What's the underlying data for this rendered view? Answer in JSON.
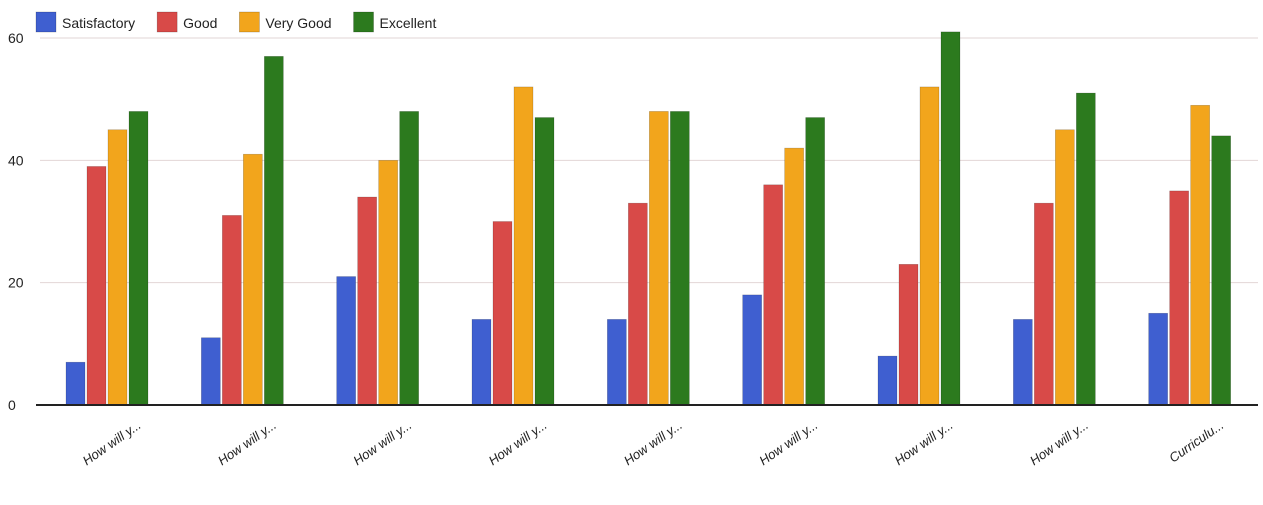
{
  "chart_data": {
    "type": "bar",
    "title": "",
    "xlabel": "",
    "ylabel": "",
    "ylim": [
      0,
      60
    ],
    "yticks": [
      0,
      20,
      40,
      60
    ],
    "grid": true,
    "legend_position": "top-left",
    "categories": [
      "How will y...",
      "How will y...",
      "How will y...",
      "How will y...",
      "How will y...",
      "How will y...",
      "How will y...",
      "How will y...",
      "Curriculu..."
    ],
    "series": [
      {
        "name": "Satisfactory",
        "color": "#3f5fd0",
        "values": [
          7,
          11,
          21,
          14,
          14,
          18,
          8,
          14,
          15
        ]
      },
      {
        "name": "Good",
        "color": "#d84a48",
        "values": [
          39,
          31,
          34,
          30,
          33,
          36,
          23,
          33,
          35
        ]
      },
      {
        "name": "Very Good",
        "color": "#f2a51c",
        "values": [
          45,
          41,
          40,
          52,
          48,
          42,
          52,
          45,
          49
        ]
      },
      {
        "name": "Excellent",
        "color": "#2c7a1e",
        "values": [
          48,
          57,
          48,
          47,
          48,
          47,
          61,
          51,
          44
        ]
      }
    ]
  }
}
